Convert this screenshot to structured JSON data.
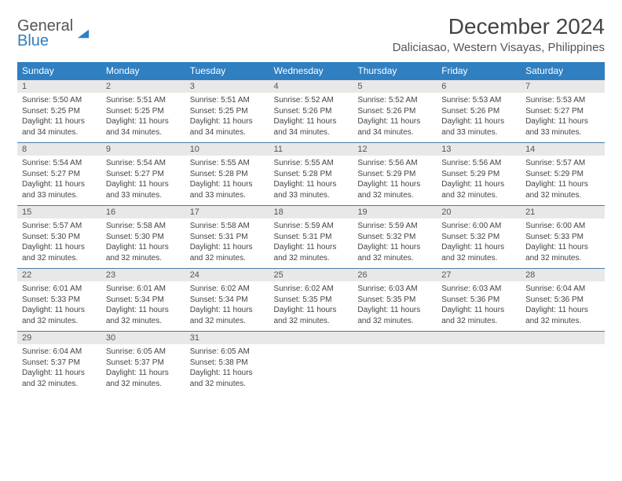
{
  "brand": {
    "name_top": "General",
    "name_bottom": "Blue"
  },
  "title": "December 2024",
  "location": "Daliciasao, Western Visayas, Philippines",
  "styling": {
    "header_bg": "#2f7fc1",
    "header_text": "#ffffff",
    "daynum_bg": "#e8e8e8",
    "border_color": "#4a7ba8",
    "page_bg": "#ffffff",
    "body_text": "#444444",
    "title_fontsize_pt": 21,
    "location_fontsize_pt": 11,
    "dayhead_fontsize_pt": 9,
    "cell_fontsize_pt": 7.5
  },
  "day_headers": [
    "Sunday",
    "Monday",
    "Tuesday",
    "Wednesday",
    "Thursday",
    "Friday",
    "Saturday"
  ],
  "weeks": [
    [
      {
        "n": "1",
        "sr": "5:50 AM",
        "ss": "5:25 PM",
        "dl": "11 hours and 34 minutes."
      },
      {
        "n": "2",
        "sr": "5:51 AM",
        "ss": "5:25 PM",
        "dl": "11 hours and 34 minutes."
      },
      {
        "n": "3",
        "sr": "5:51 AM",
        "ss": "5:25 PM",
        "dl": "11 hours and 34 minutes."
      },
      {
        "n": "4",
        "sr": "5:52 AM",
        "ss": "5:26 PM",
        "dl": "11 hours and 34 minutes."
      },
      {
        "n": "5",
        "sr": "5:52 AM",
        "ss": "5:26 PM",
        "dl": "11 hours and 34 minutes."
      },
      {
        "n": "6",
        "sr": "5:53 AM",
        "ss": "5:26 PM",
        "dl": "11 hours and 33 minutes."
      },
      {
        "n": "7",
        "sr": "5:53 AM",
        "ss": "5:27 PM",
        "dl": "11 hours and 33 minutes."
      }
    ],
    [
      {
        "n": "8",
        "sr": "5:54 AM",
        "ss": "5:27 PM",
        "dl": "11 hours and 33 minutes."
      },
      {
        "n": "9",
        "sr": "5:54 AM",
        "ss": "5:27 PM",
        "dl": "11 hours and 33 minutes."
      },
      {
        "n": "10",
        "sr": "5:55 AM",
        "ss": "5:28 PM",
        "dl": "11 hours and 33 minutes."
      },
      {
        "n": "11",
        "sr": "5:55 AM",
        "ss": "5:28 PM",
        "dl": "11 hours and 33 minutes."
      },
      {
        "n": "12",
        "sr": "5:56 AM",
        "ss": "5:29 PM",
        "dl": "11 hours and 32 minutes."
      },
      {
        "n": "13",
        "sr": "5:56 AM",
        "ss": "5:29 PM",
        "dl": "11 hours and 32 minutes."
      },
      {
        "n": "14",
        "sr": "5:57 AM",
        "ss": "5:29 PM",
        "dl": "11 hours and 32 minutes."
      }
    ],
    [
      {
        "n": "15",
        "sr": "5:57 AM",
        "ss": "5:30 PM",
        "dl": "11 hours and 32 minutes."
      },
      {
        "n": "16",
        "sr": "5:58 AM",
        "ss": "5:30 PM",
        "dl": "11 hours and 32 minutes."
      },
      {
        "n": "17",
        "sr": "5:58 AM",
        "ss": "5:31 PM",
        "dl": "11 hours and 32 minutes."
      },
      {
        "n": "18",
        "sr": "5:59 AM",
        "ss": "5:31 PM",
        "dl": "11 hours and 32 minutes."
      },
      {
        "n": "19",
        "sr": "5:59 AM",
        "ss": "5:32 PM",
        "dl": "11 hours and 32 minutes."
      },
      {
        "n": "20",
        "sr": "6:00 AM",
        "ss": "5:32 PM",
        "dl": "11 hours and 32 minutes."
      },
      {
        "n": "21",
        "sr": "6:00 AM",
        "ss": "5:33 PM",
        "dl": "11 hours and 32 minutes."
      }
    ],
    [
      {
        "n": "22",
        "sr": "6:01 AM",
        "ss": "5:33 PM",
        "dl": "11 hours and 32 minutes."
      },
      {
        "n": "23",
        "sr": "6:01 AM",
        "ss": "5:34 PM",
        "dl": "11 hours and 32 minutes."
      },
      {
        "n": "24",
        "sr": "6:02 AM",
        "ss": "5:34 PM",
        "dl": "11 hours and 32 minutes."
      },
      {
        "n": "25",
        "sr": "6:02 AM",
        "ss": "5:35 PM",
        "dl": "11 hours and 32 minutes."
      },
      {
        "n": "26",
        "sr": "6:03 AM",
        "ss": "5:35 PM",
        "dl": "11 hours and 32 minutes."
      },
      {
        "n": "27",
        "sr": "6:03 AM",
        "ss": "5:36 PM",
        "dl": "11 hours and 32 minutes."
      },
      {
        "n": "28",
        "sr": "6:04 AM",
        "ss": "5:36 PM",
        "dl": "11 hours and 32 minutes."
      }
    ],
    [
      {
        "n": "29",
        "sr": "6:04 AM",
        "ss": "5:37 PM",
        "dl": "11 hours and 32 minutes."
      },
      {
        "n": "30",
        "sr": "6:05 AM",
        "ss": "5:37 PM",
        "dl": "11 hours and 32 minutes."
      },
      {
        "n": "31",
        "sr": "6:05 AM",
        "ss": "5:38 PM",
        "dl": "11 hours and 32 minutes."
      },
      null,
      null,
      null,
      null
    ]
  ],
  "labels": {
    "sunrise": "Sunrise: ",
    "sunset": "Sunset: ",
    "daylight": "Daylight: "
  }
}
